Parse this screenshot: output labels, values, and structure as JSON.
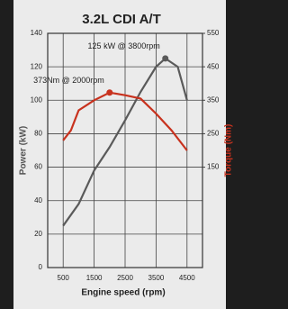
{
  "chart_data": {
    "type": "line",
    "title": "3.2L CDI A/T",
    "x_label": "Engine speed (rpm)",
    "y_label": "Power (kW)",
    "y2_label": "Torque (Nm)",
    "xlim": [
      0,
      5000
    ],
    "xticks": [
      500,
      1500,
      2500,
      3500,
      4500
    ],
    "ylim": [
      0,
      140
    ],
    "yticks": [
      0,
      20,
      40,
      60,
      80,
      100,
      120,
      140
    ],
    "y2lim": [
      -150,
      550
    ],
    "y2ticks": [
      150,
      250,
      350,
      450,
      550
    ],
    "grid": true,
    "series": [
      {
        "name": "Power (kW)",
        "color": "#5a5a5a",
        "axis": "y",
        "x": [
          500,
          1000,
          1500,
          2000,
          2500,
          3000,
          3500,
          3800,
          4200,
          4500
        ],
        "values": [
          25,
          38,
          58,
          72,
          88,
          105,
          120,
          125,
          120,
          100
        ]
      },
      {
        "name": "Torque (Nm)",
        "color": "#c8321e",
        "axis": "y2",
        "x": [
          500,
          750,
          1000,
          1500,
          2000,
          2500,
          3000,
          3500,
          4000,
          4500
        ],
        "values": [
          230,
          260,
          320,
          350,
          373,
          365,
          355,
          310,
          260,
          200
        ]
      }
    ],
    "annotations": [
      {
        "text": "125 kW @ 3800rpm",
        "series": 0,
        "x": 3800,
        "value": 125
      },
      {
        "text": "373Nm @ 2000rpm",
        "series": 1,
        "x": 2000,
        "value": 373
      }
    ]
  }
}
